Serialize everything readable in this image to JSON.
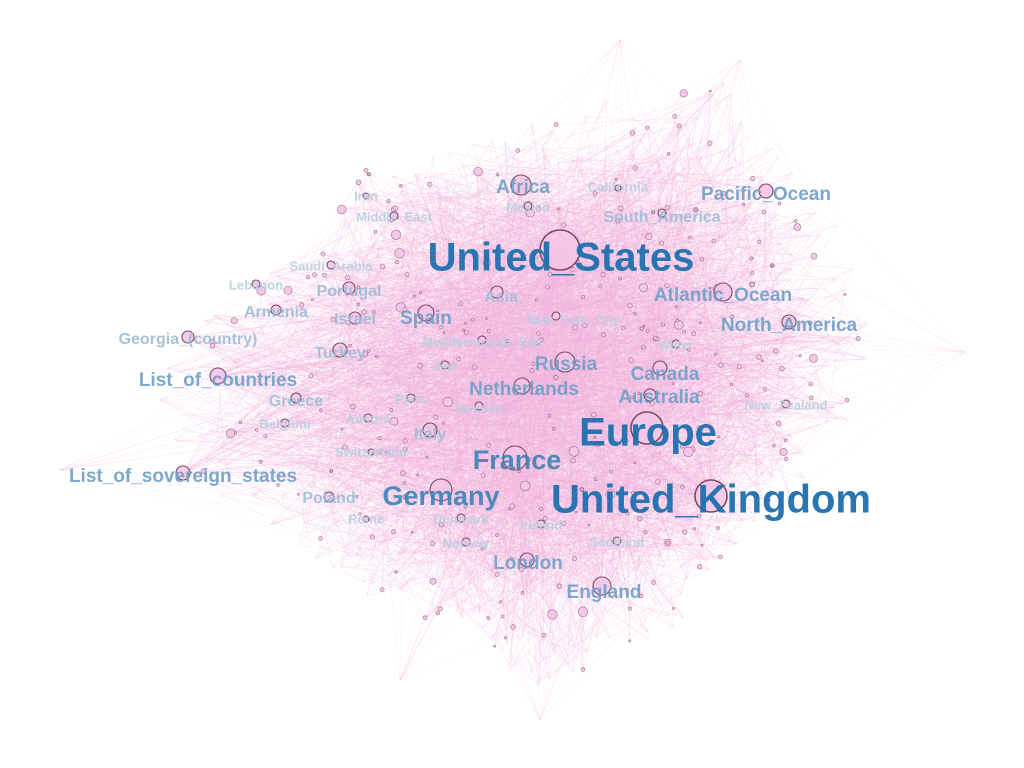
{
  "graph": {
    "node_color": "#f6c6e6",
    "node_stroke": "#7a4a66",
    "edge_color": "#f3b3dd",
    "label_colors": {
      "xl": "#1f6fae",
      "l": "#3b82b6",
      "m": "#6f9fc6",
      "s": "#9dbcd6",
      "xs": "#b9cfe0"
    },
    "nodes": [
      {
        "id": "United_States",
        "label": "United_States",
        "size": "xl"
      },
      {
        "id": "United_Kingdom",
        "label": "United_Kingdom",
        "size": "xl"
      },
      {
        "id": "Europe",
        "label": "Europe",
        "size": "xl"
      },
      {
        "id": "France",
        "label": "France",
        "size": "l"
      },
      {
        "id": "Germany",
        "label": "Germany",
        "size": "l"
      },
      {
        "id": "Africa",
        "label": "Africa",
        "size": "m"
      },
      {
        "id": "Atlantic_Ocean",
        "label": "Atlantic_Ocean",
        "size": "m"
      },
      {
        "id": "Russia",
        "label": "Russia",
        "size": "m"
      },
      {
        "id": "Spain",
        "label": "Spain",
        "size": "m"
      },
      {
        "id": "Canada",
        "label": "Canada",
        "size": "m"
      },
      {
        "id": "England",
        "label": "England",
        "size": "m"
      },
      {
        "id": "Netherlands",
        "label": "Netherlands",
        "size": "m"
      },
      {
        "id": "List_of_countries",
        "label": "List_of_countries",
        "size": "m"
      },
      {
        "id": "List_of_sovereign_states",
        "label": "List_of_sovereign_states",
        "size": "m"
      },
      {
        "id": "Pacific_Ocean",
        "label": "Pacific_Ocean",
        "size": "m"
      },
      {
        "id": "North_America",
        "label": "North_America",
        "size": "m"
      },
      {
        "id": "Australia",
        "label": "Australia",
        "size": "m"
      },
      {
        "id": "London",
        "label": "London",
        "size": "m"
      },
      {
        "id": "Turkey",
        "label": "Turkey",
        "size": "s"
      },
      {
        "id": "Portugal",
        "label": "Portugal",
        "size": "s"
      },
      {
        "id": "Asia",
        "label": "Asia",
        "size": "s"
      },
      {
        "id": "Israel",
        "label": "Israel",
        "size": "s"
      },
      {
        "id": "Italy",
        "label": "Italy",
        "size": "s"
      },
      {
        "id": "Poland",
        "label": "Poland",
        "size": "s"
      },
      {
        "id": "Greece",
        "label": "Greece",
        "size": "s"
      },
      {
        "id": "Armenia",
        "label": "Armenia",
        "size": "s"
      },
      {
        "id": "Georgia_(country)",
        "label": "Georgia_(country)",
        "size": "s"
      },
      {
        "id": "South_America",
        "label": "South_America",
        "size": "s"
      },
      {
        "id": "Lebanon",
        "label": "Lebanon",
        "size": "xs"
      },
      {
        "id": "Saudi_Arabia",
        "label": "Saudi_Arabia",
        "size": "xs"
      },
      {
        "id": "Iran",
        "label": "Iran",
        "size": "xs"
      },
      {
        "id": "Middle_East",
        "label": "Middle_East",
        "size": "xs"
      },
      {
        "id": "Mexico",
        "label": "Mexico",
        "size": "xs"
      },
      {
        "id": "California",
        "label": "California",
        "size": "xs"
      },
      {
        "id": "New_York_City",
        "label": "New_York_City",
        "size": "xs"
      },
      {
        "id": "Mediterranean_Sea",
        "label": "Mediterranean_Sea",
        "size": "xs"
      },
      {
        "id": "Jew",
        "label": "Jew",
        "size": "xs"
      },
      {
        "id": "Water",
        "label": "Water",
        "size": "xs"
      },
      {
        "id": "Paris",
        "label": "Paris",
        "size": "xs"
      },
      {
        "id": "Sweden",
        "label": "Sweden",
        "size": "xs"
      },
      {
        "id": "Austria",
        "label": "Austria",
        "size": "xs"
      },
      {
        "id": "Belgium",
        "label": "Belgium",
        "size": "xs"
      },
      {
        "id": "Switzerland",
        "label": "Switzerland",
        "size": "xs"
      },
      {
        "id": "New_Zealand",
        "label": "New_Zealand",
        "size": "xs"
      },
      {
        "id": "Rome",
        "label": "Rome",
        "size": "xs"
      },
      {
        "id": "Denmark",
        "label": "Denmark",
        "size": "xs"
      },
      {
        "id": "Ireland",
        "label": "Ireland",
        "size": "xs"
      },
      {
        "id": "Norway",
        "label": "Norway",
        "size": "xs"
      },
      {
        "id": "Scotland",
        "label": "Scotland",
        "size": "xs"
      }
    ]
  }
}
